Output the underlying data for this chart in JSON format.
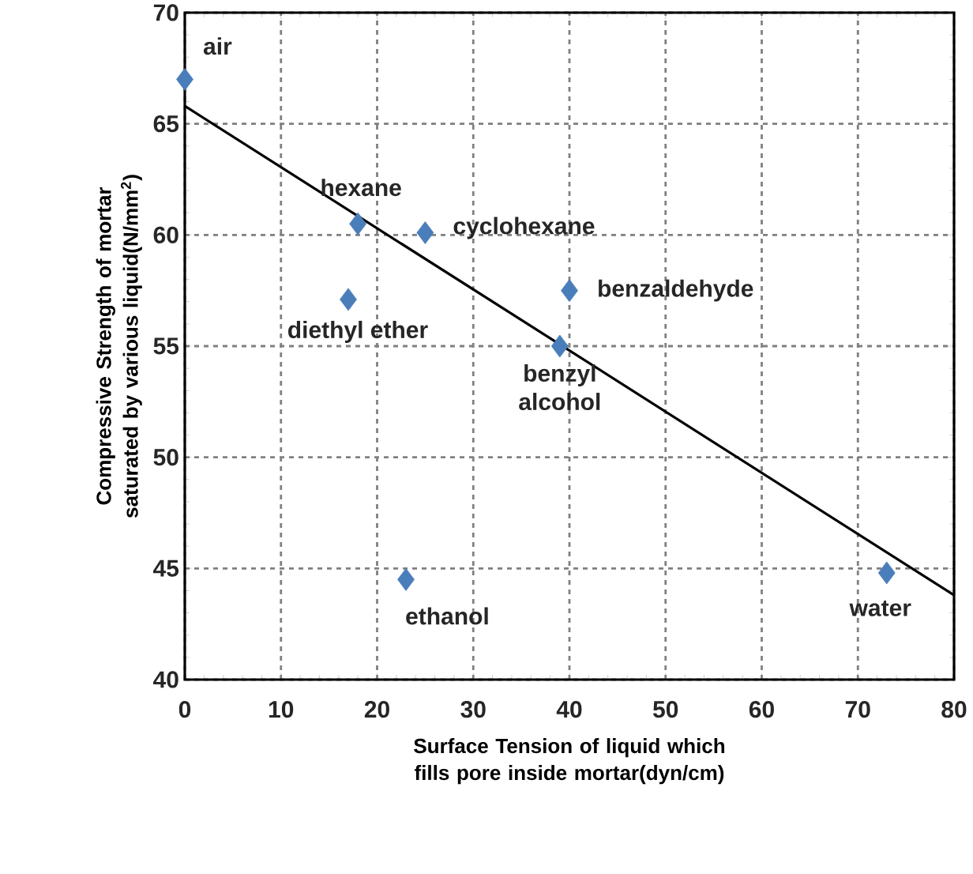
{
  "chart_data": {
    "type": "scatter",
    "xlabel": "Surface Tension of liquid which fills pore inside mortar(dyn/cm)",
    "ylabel": "Compressive Strength of mortar saturated by various liquid(N/mm$^{2}$)",
    "xlim": [
      0,
      80
    ],
    "ylim": [
      40,
      70
    ],
    "xticks": [
      0,
      10,
      20,
      30,
      40,
      50,
      60,
      70,
      80
    ],
    "yticks": [
      40,
      45,
      50,
      55,
      60,
      65,
      70
    ],
    "grid": true,
    "series": [
      {
        "color": "#4a7ebb",
        "marker": "diamond",
        "x": [
          0,
          18,
          25,
          17,
          40,
          39,
          23,
          73
        ],
        "values": [
          67,
          60.5,
          60.1,
          57.1,
          57.5,
          55,
          44.5,
          44.8
        ]
      },
      {
        "type": "line",
        "color": "#000000",
        "marker": "none",
        "line_style": "solid",
        "x": [
          0,
          80
        ],
        "values": [
          65.8,
          43.8
        ]
      }
    ],
    "annotations": [
      {
        "text": "air",
        "x": 0,
        "y": 67
      },
      {
        "text": "hexane",
        "x": 18,
        "y": 60.5
      },
      {
        "text": "cyclohexane",
        "x": 25,
        "y": 60.1
      },
      {
        "text": "diethyl ether",
        "x": 17,
        "y": 57.1
      },
      {
        "text": "benzaldehyde",
        "x": 40,
        "y": 57.5
      },
      {
        "text": "benzyl alcohol",
        "x": 39,
        "y": 55
      },
      {
        "text": "ethanol",
        "x": 23,
        "y": 44.5
      },
      {
        "text": "water",
        "x": 73,
        "y": 44.8
      }
    ]
  }
}
